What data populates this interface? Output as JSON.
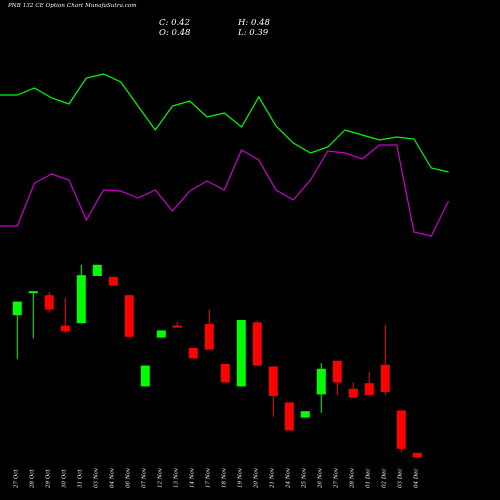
{
  "header": {
    "title": "PNB 132  CE Option  Chart MunafaSutra.com",
    "close_label": "C: 0.42",
    "high_label": "H: 0.48",
    "open_label": "O: 0.48",
    "low_label": "L: 0.39"
  },
  "colors": {
    "background": "#000000",
    "up_candle": "#00ff00",
    "down_candle": "#ff0000",
    "green_line": "#00ff00",
    "magenta_line": "#cc00cc",
    "text": "#ffffff"
  },
  "chart_data": [
    {
      "type": "line",
      "title": "",
      "categories": [
        "",
        "27 Oct",
        "28 Oct",
        "29 Oct",
        "30 Oct",
        "31 Oct",
        "03 Nov",
        "04 Nov",
        "06 Nov",
        "07 Nov",
        "12 Nov",
        "13 Nov",
        "14 Nov",
        "17 Nov",
        "18 Nov",
        "19 Nov",
        "20 Nov",
        "21 Nov",
        "24 Nov",
        "25 Nov",
        "26 Nov",
        "27 Nov",
        "28 Nov",
        "01 Dec",
        "02 Dec",
        "03 Dec",
        "04 Dec"
      ],
      "series": [
        {
          "values": [
            95,
            95,
            88,
            98,
            104,
            78,
            74,
            82,
            106,
            130,
            106,
            101,
            117,
            113,
            127,
            97,
            126,
            143,
            153,
            147,
            130,
            135,
            140,
            137,
            139,
            168,
            172
          ]
        },
        {
          "values": [
            226,
            226,
            183,
            174,
            180,
            220,
            190,
            191,
            198,
            190,
            211,
            191,
            181,
            190,
            150,
            160,
            190,
            200,
            180,
            151,
            153,
            159,
            145,
            145,
            232,
            236,
            201
          ]
        }
      ],
      "note": "values are on an unlabeled relative scale (no y-axis shown)"
    },
    {
      "type": "candlestick",
      "title": "",
      "categories": [
        "27 Oct",
        "28 Oct",
        "29 Oct",
        "30 Oct",
        "31 Oct",
        "03 Nov",
        "04 Nov",
        "06 Nov",
        "07 Nov",
        "12 Nov",
        "13 Nov",
        "14 Nov",
        "17 Nov",
        "18 Nov",
        "19 Nov",
        "20 Nov",
        "21 Nov",
        "24 Nov",
        "25 Nov",
        "26 Nov",
        "27 Nov",
        "28 Nov",
        "01 Dec",
        "02 Dec",
        "03 Dec",
        "04 Dec"
      ],
      "ohlc": [
        {
          "o": 1.06,
          "h": 1.23,
          "l": 0.51,
          "c": 1.23,
          "dir": "up"
        },
        {
          "o": 1.35,
          "h": 1.36,
          "l": 0.77,
          "c": 1.36,
          "dir": "up"
        },
        {
          "o": 1.31,
          "h": 1.35,
          "l": 1.09,
          "c": 1.13,
          "dir": "down"
        },
        {
          "o": 0.93,
          "h": 1.28,
          "l": 0.84,
          "c": 0.86,
          "dir": "down"
        },
        {
          "o": 0.96,
          "h": 1.69,
          "l": 0.96,
          "c": 1.56,
          "dir": "up"
        },
        {
          "o": 1.55,
          "h": 1.69,
          "l": 1.55,
          "c": 1.69,
          "dir": "up"
        },
        {
          "o": 1.54,
          "h": 1.54,
          "l": 1.43,
          "c": 1.43,
          "dir": "down"
        },
        {
          "o": 1.31,
          "h": 1.31,
          "l": 0.79,
          "c": 0.79,
          "dir": "down"
        },
        {
          "o": 0.17,
          "h": 0.43,
          "l": 0.17,
          "c": 0.43,
          "dir": "up"
        },
        {
          "o": 0.78,
          "h": 0.87,
          "l": 0.78,
          "c": 0.87,
          "dir": "up"
        },
        {
          "o": 0.93,
          "h": 0.98,
          "l": 0.93,
          "c": 0.93,
          "dir": "down"
        },
        {
          "o": 0.65,
          "h": 0.65,
          "l": 0.52,
          "c": 0.52,
          "dir": "down"
        },
        {
          "o": 0.95,
          "h": 1.13,
          "l": 0.63,
          "c": 0.63,
          "dir": "down"
        },
        {
          "o": 0.45,
          "h": 0.45,
          "l": 0.22,
          "c": 0.22,
          "dir": "down"
        },
        {
          "o": 0.17,
          "h": 1.0,
          "l": 0.17,
          "c": 1.0,
          "dir": "up"
        },
        {
          "o": 0.97,
          "h": 0.99,
          "l": 0.43,
          "c": 0.43,
          "dir": "down"
        },
        {
          "o": 0.42,
          "h": 0.42,
          "l": -0.21,
          "c": 0.05,
          "dir": "down"
        },
        {
          "o": -0.03,
          "h": -0.03,
          "l": -0.38,
          "c": -0.38,
          "dir": "down"
        },
        {
          "o": -0.22,
          "h": -0.14,
          "l": -0.22,
          "c": -0.14,
          "dir": "up"
        },
        {
          "o": 0.07,
          "h": 0.46,
          "l": -0.16,
          "c": 0.39,
          "dir": "up"
        },
        {
          "o": 0.49,
          "h": 0.49,
          "l": 0.06,
          "c": 0.22,
          "dir": "down"
        },
        {
          "o": 0.14,
          "h": 0.22,
          "l": 0.03,
          "c": 0.03,
          "dir": "down"
        },
        {
          "o": 0.21,
          "h": 0.35,
          "l": 0.06,
          "c": 0.06,
          "dir": "down"
        },
        {
          "o": 0.44,
          "h": 0.94,
          "l": 0.06,
          "c": 0.1,
          "dir": "down"
        },
        {
          "o": -0.13,
          "h": -0.13,
          "l": -0.65,
          "c": -0.61,
          "dir": "down"
        },
        {
          "o": -0.66,
          "h": -0.66,
          "l": -0.72,
          "c": -0.72,
          "dir": "down"
        }
      ],
      "note": "prices on an unlabeled relative scale (no y-axis shown)"
    }
  ]
}
